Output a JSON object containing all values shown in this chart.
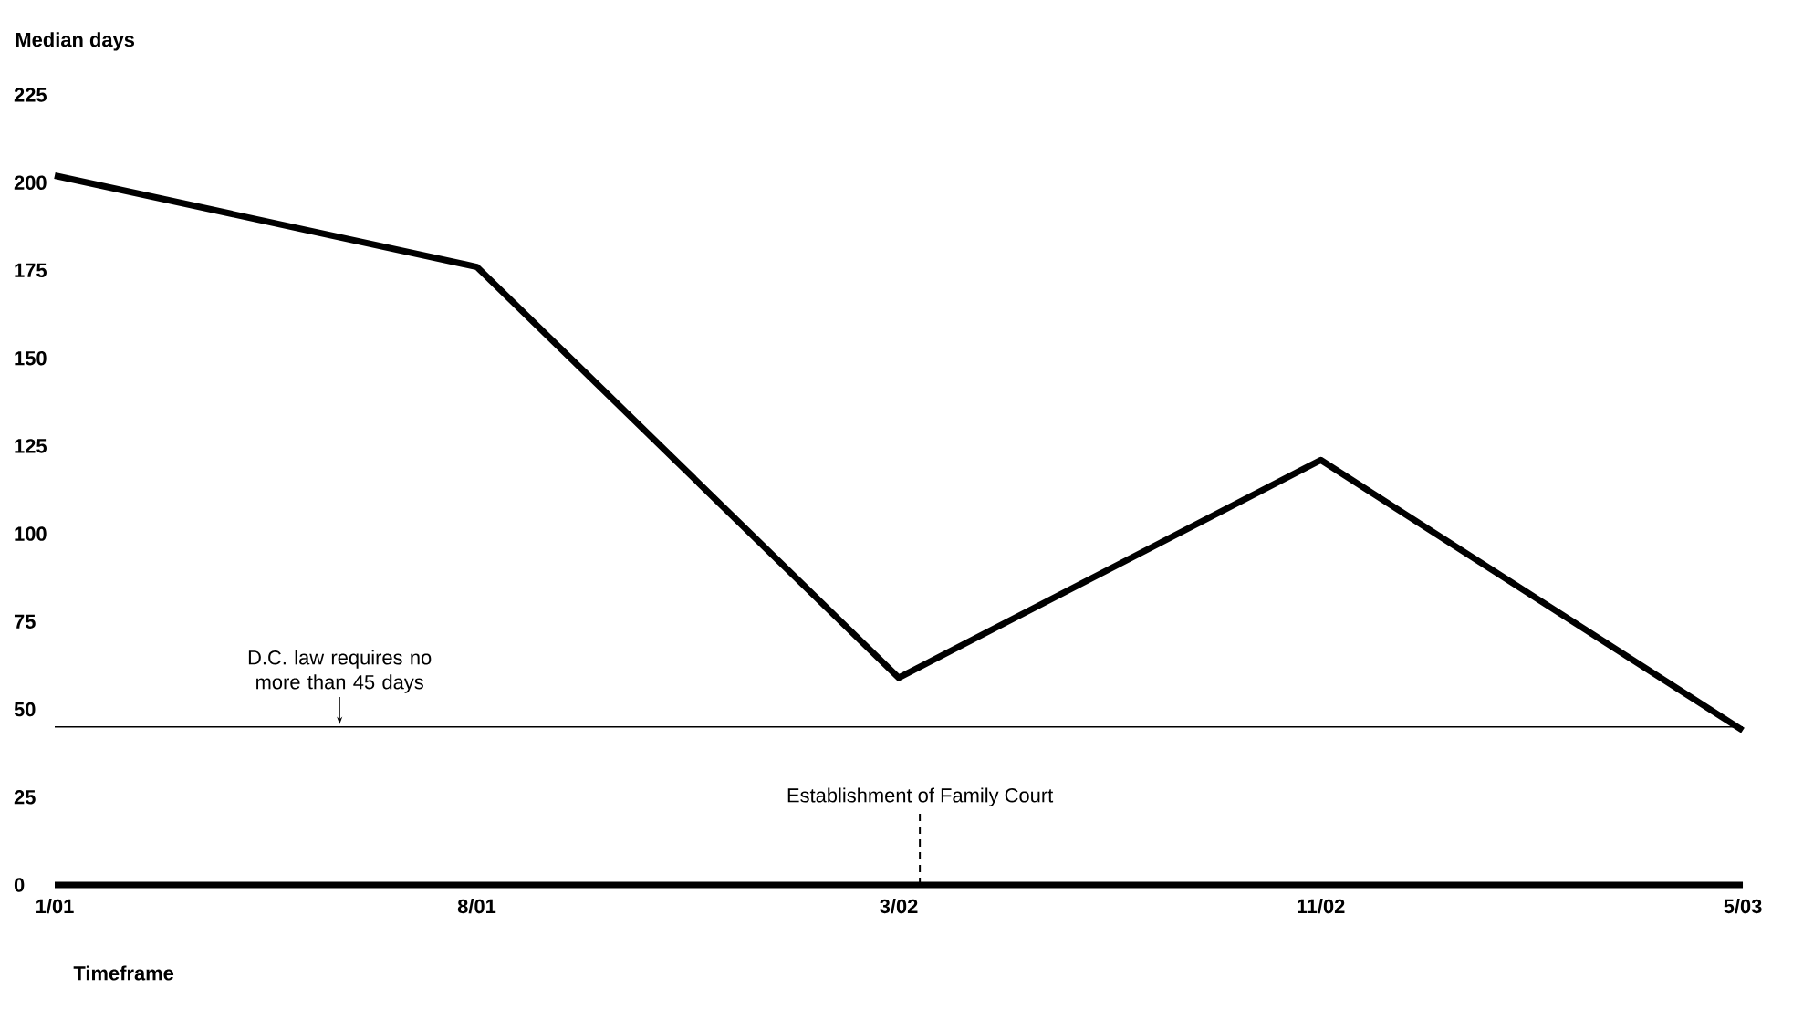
{
  "chart_data": {
    "type": "line",
    "ylabel": "Median days",
    "xlabel": "Timeframe",
    "categories": [
      "1/01",
      "8/01",
      "3/02",
      "11/02",
      "5/03"
    ],
    "series": [
      {
        "color": "#000000",
        "values": [
          202,
          176,
          59,
          121,
          44
        ]
      }
    ],
    "ylim": [
      0,
      225
    ],
    "yticks": [
      0,
      25,
      50,
      75,
      100,
      125,
      150,
      175,
      200,
      225
    ],
    "ref_lines": [
      {
        "axis": "y",
        "value": 45,
        "label": "D.C. law requires no more than 45 days",
        "color": "#000000",
        "line_style": "solid"
      }
    ],
    "annotations": [
      "Establishment of Family Court"
    ],
    "grid": false
  }
}
